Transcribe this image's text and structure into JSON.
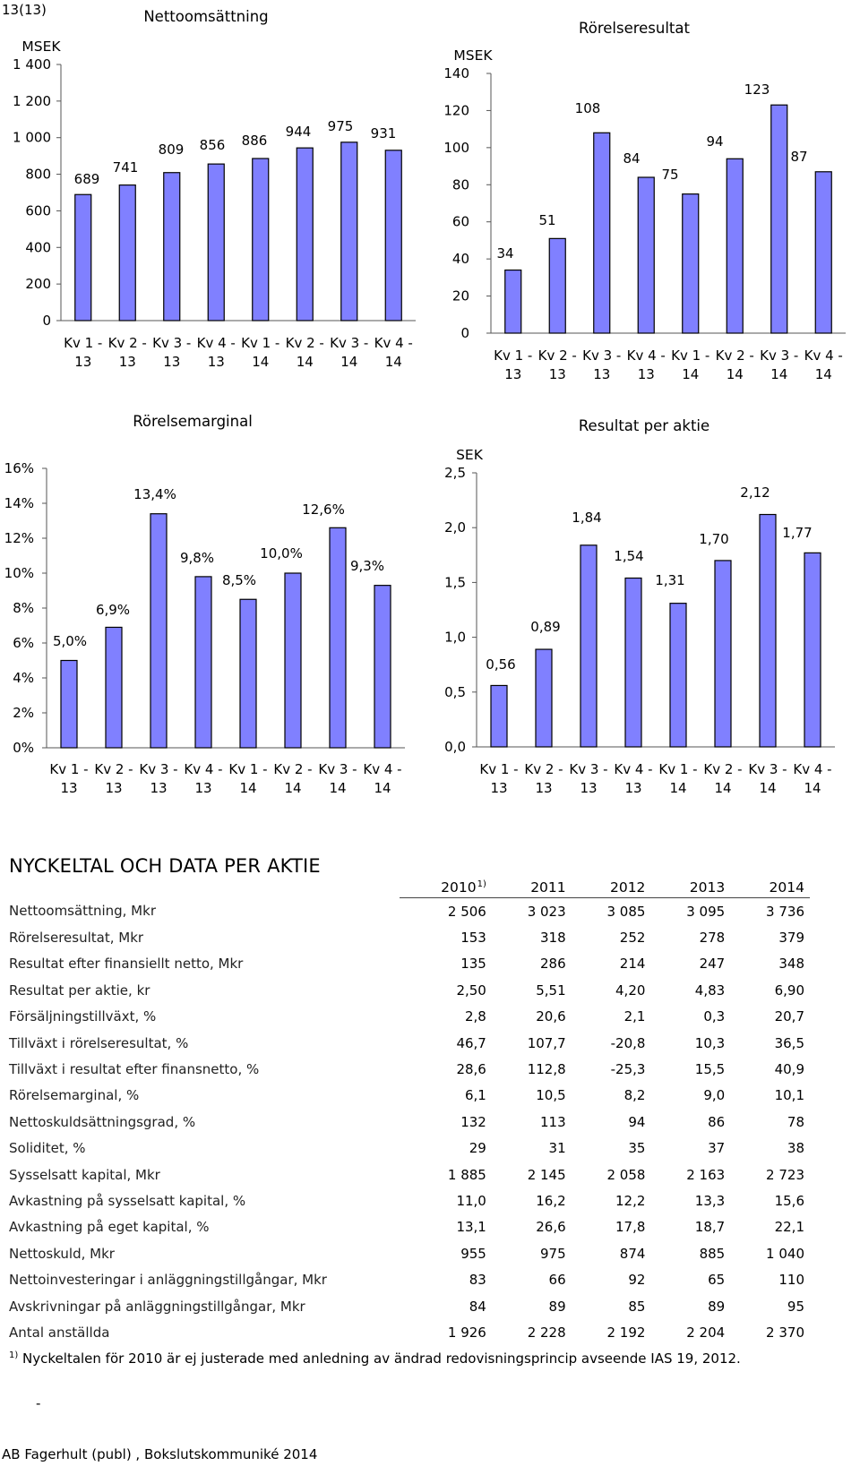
{
  "page_number": "13(13)",
  "chart_data": [
    {
      "id": "netsales",
      "type": "bar",
      "title": "Nettoomsättning",
      "ylabel": "MSEK",
      "ylim": [
        0,
        1400
      ],
      "yticks": [
        0,
        200,
        400,
        600,
        800,
        1000,
        1200,
        1400
      ],
      "ytick_labels": [
        "0",
        "200",
        "400",
        "600",
        "800",
        "1 000",
        "1 200",
        "1 400"
      ],
      "categories": [
        [
          "Kv 1 -",
          "13"
        ],
        [
          "Kv 2 -",
          "13"
        ],
        [
          "Kv 3 -",
          "13"
        ],
        [
          "Kv 4 -",
          "13"
        ],
        [
          "Kv 1 -",
          "14"
        ],
        [
          "Kv 2 -",
          "14"
        ],
        [
          "Kv 3 -",
          "14"
        ],
        [
          "Kv 4 -",
          "14"
        ]
      ],
      "values": [
        689,
        741,
        809,
        856,
        886,
        944,
        975,
        931
      ],
      "value_labels": [
        "689",
        "741",
        "809",
        "856",
        "886",
        "944",
        "975",
        "931"
      ],
      "bar_color": "#8080ff",
      "grid": false
    },
    {
      "id": "operating",
      "type": "bar",
      "title": "Rörelseresultat",
      "ylabel": "MSEK",
      "ylim": [
        0,
        140
      ],
      "yticks": [
        0,
        20,
        40,
        60,
        80,
        100,
        120,
        140
      ],
      "ytick_labels": [
        "0",
        "20",
        "40",
        "60",
        "80",
        "100",
        "120",
        "140"
      ],
      "categories": [
        [
          "Kv 1 -",
          "13"
        ],
        [
          "Kv 2 -",
          "13"
        ],
        [
          "Kv 3 -",
          "13"
        ],
        [
          "Kv 4 -",
          "13"
        ],
        [
          "Kv 1 -",
          "14"
        ],
        [
          "Kv 2 -",
          "14"
        ],
        [
          "Kv 3 -",
          "14"
        ],
        [
          "Kv 4 -",
          "14"
        ]
      ],
      "values": [
        34,
        51,
        108,
        84,
        75,
        94,
        123,
        87
      ],
      "value_labels": [
        "34",
        "51",
        "108",
        "84",
        "75",
        "94",
        "123",
        "87"
      ],
      "bar_color": "#8080ff",
      "grid": false
    },
    {
      "id": "margin",
      "type": "bar",
      "title": "Rörelsemarginal",
      "ylabel": "",
      "ylim": [
        0,
        16
      ],
      "yticks": [
        0,
        2,
        4,
        6,
        8,
        10,
        12,
        14,
        16
      ],
      "ytick_labels": [
        "0%",
        "2%",
        "4%",
        "6%",
        "8%",
        "10%",
        "12%",
        "14%",
        "16%"
      ],
      "categories": [
        [
          "Kv 1 -",
          "13"
        ],
        [
          "Kv 2 -",
          "13"
        ],
        [
          "Kv 3 -",
          "13"
        ],
        [
          "Kv 4 -",
          "13"
        ],
        [
          "Kv 1 -",
          "14"
        ],
        [
          "Kv 2 -",
          "14"
        ],
        [
          "Kv 3 -",
          "14"
        ],
        [
          "Kv 4 -",
          "14"
        ]
      ],
      "values": [
        5.0,
        6.9,
        13.4,
        9.8,
        8.5,
        10.0,
        12.6,
        9.3
      ],
      "value_labels": [
        "5,0%",
        "6,9%",
        "13,4%",
        "9,8%",
        "8,5%",
        "10,0%",
        "12,6%",
        "9,3%"
      ],
      "bar_color": "#8080ff",
      "grid": false
    },
    {
      "id": "eps",
      "type": "bar",
      "title": "Resultat per aktie",
      "ylabel": "SEK",
      "ylim": [
        0,
        2.5
      ],
      "yticks": [
        0,
        0.5,
        1.0,
        1.5,
        2.0,
        2.5
      ],
      "ytick_labels": [
        "0,0",
        "0,5",
        "1,0",
        "1,5",
        "2,0",
        "2,5"
      ],
      "categories": [
        [
          "Kv 1 -",
          "13"
        ],
        [
          "Kv 2 -",
          "13"
        ],
        [
          "Kv 3 -",
          "13"
        ],
        [
          "Kv 4 -",
          "13"
        ],
        [
          "Kv 1 -",
          "14"
        ],
        [
          "Kv 2 -",
          "14"
        ],
        [
          "Kv 3 -",
          "14"
        ],
        [
          "Kv 4 -",
          "14"
        ]
      ],
      "values": [
        0.56,
        0.89,
        1.84,
        1.54,
        1.31,
        1.7,
        2.12,
        1.77
      ],
      "value_labels": [
        "0,56",
        "0,89",
        "1,84",
        "1,54",
        "1,31",
        "1,70",
        "2,12",
        "1,77"
      ],
      "bar_color": "#8080ff",
      "grid": false
    }
  ],
  "kpi_table": {
    "title": "NYCKELTAL OCH DATA PER AKTIE",
    "years": [
      "2010",
      "2011",
      "2012",
      "2013",
      "2014"
    ],
    "first_year_note": "1)",
    "rows": [
      {
        "label": "Nettoomsättning, Mkr",
        "values": [
          "2 506",
          "3 023",
          "3 085",
          "3 095",
          "3 736"
        ]
      },
      {
        "label": "Rörelseresultat, Mkr",
        "values": [
          "153",
          "318",
          "252",
          "278",
          "379"
        ]
      },
      {
        "label": "Resultat efter finansiellt netto, Mkr",
        "values": [
          "135",
          "286",
          "214",
          "247",
          "348"
        ]
      },
      {
        "label": "Resultat per aktie, kr",
        "values": [
          "2,50",
          "5,51",
          "4,20",
          "4,83",
          "6,90"
        ]
      },
      {
        "label": "Försäljningstillväxt, %",
        "values": [
          "2,8",
          "20,6",
          "2,1",
          "0,3",
          "20,7"
        ]
      },
      {
        "label": "Tillväxt i rörelseresultat, %",
        "values": [
          "46,7",
          "107,7",
          "-20,8",
          "10,3",
          "36,5"
        ]
      },
      {
        "label": "Tillväxt i resultat efter finansnetto, %",
        "values": [
          "28,6",
          "112,8",
          "-25,3",
          "15,5",
          "40,9"
        ]
      },
      {
        "label": "Rörelsemarginal, %",
        "values": [
          "6,1",
          "10,5",
          "8,2",
          "9,0",
          "10,1"
        ]
      },
      {
        "label": "Nettoskuldsättningsgrad, %",
        "values": [
          "132",
          "113",
          "94",
          "86",
          "78"
        ]
      },
      {
        "label": "Soliditet, %",
        "values": [
          "29",
          "31",
          "35",
          "37",
          "38"
        ]
      },
      {
        "label": "Sysselsatt kapital, Mkr",
        "values": [
          "1 885",
          "2 145",
          "2 058",
          "2 163",
          "2 723"
        ]
      },
      {
        "label": "Avkastning på sysselsatt kapital, %",
        "values": [
          "11,0",
          "16,2",
          "12,2",
          "13,3",
          "15,6"
        ]
      },
      {
        "label": "Avkastning på eget kapital, %",
        "values": [
          "13,1",
          "26,6",
          "17,8",
          "18,7",
          "22,1"
        ]
      },
      {
        "label": "Nettoskuld, Mkr",
        "values": [
          "955",
          "975",
          "874",
          "885",
          "1 040"
        ]
      },
      {
        "label": "Nettoinvesteringar i anläggningstillgångar, Mkr",
        "values": [
          "83",
          "66",
          "92",
          "65",
          "110"
        ]
      },
      {
        "label": "Avskrivningar på anläggningstillgångar, Mkr",
        "values": [
          "84",
          "89",
          "85",
          "89",
          "95"
        ]
      },
      {
        "label": "Antal anställda",
        "values": [
          "1 926",
          "2 228",
          "2 192",
          "2 204",
          "2 370"
        ]
      }
    ]
  },
  "footnote": {
    "marker": "1)",
    "text": "Nyckeltalen för 2010 är ej justerade  med anledning av ändrad redovisningsprincip avseende IAS 19, 2012."
  },
  "dash_mark": "-",
  "footer": "AB Fagerhult (publ) , Bokslutskommuniké 2014"
}
